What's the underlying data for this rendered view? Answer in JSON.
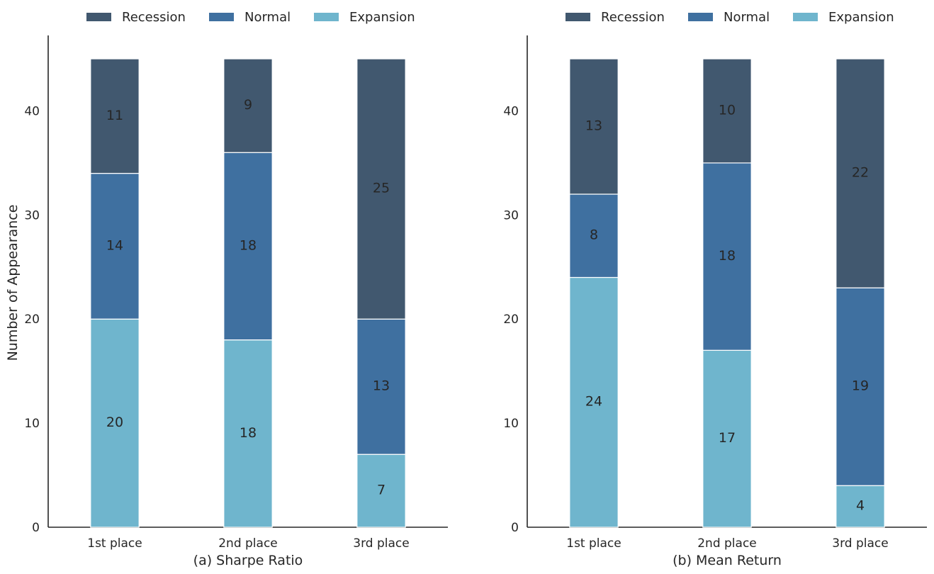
{
  "colors": {
    "Recession": "#41586f",
    "Normal": "#3f70a0",
    "Expansion": "#6fb5cd"
  },
  "legend": [
    "Recession",
    "Normal",
    "Expansion"
  ],
  "ylabel": "Number of Appearance",
  "chart_data": [
    {
      "type": "bar",
      "stacked": true,
      "xlabel": "(a) Sharpe Ratio",
      "ylabel": "Number of Appearance",
      "categories": [
        "1st place",
        "2nd place",
        "3rd place"
      ],
      "series": [
        {
          "name": "Expansion",
          "values": [
            20,
            18,
            7
          ]
        },
        {
          "name": "Normal",
          "values": [
            14,
            18,
            13
          ]
        },
        {
          "name": "Recession",
          "values": [
            11,
            9,
            25
          ]
        }
      ],
      "yticks": [
        0,
        10,
        20,
        30,
        40
      ],
      "ylim": [
        0,
        47.25
      ],
      "legend_position": "top-center",
      "grid": false
    },
    {
      "type": "bar",
      "stacked": true,
      "xlabel": "(b) Mean Return",
      "ylabel": "",
      "categories": [
        "1st place",
        "2nd place",
        "3rd place"
      ],
      "series": [
        {
          "name": "Expansion",
          "values": [
            24,
            17,
            4
          ]
        },
        {
          "name": "Normal",
          "values": [
            8,
            18,
            19
          ]
        },
        {
          "name": "Recession",
          "values": [
            13,
            10,
            22
          ]
        }
      ],
      "yticks": [
        0,
        10,
        20,
        30,
        40
      ],
      "ylim": [
        0,
        47.25
      ],
      "legend_position": "top-center",
      "grid": false
    }
  ]
}
